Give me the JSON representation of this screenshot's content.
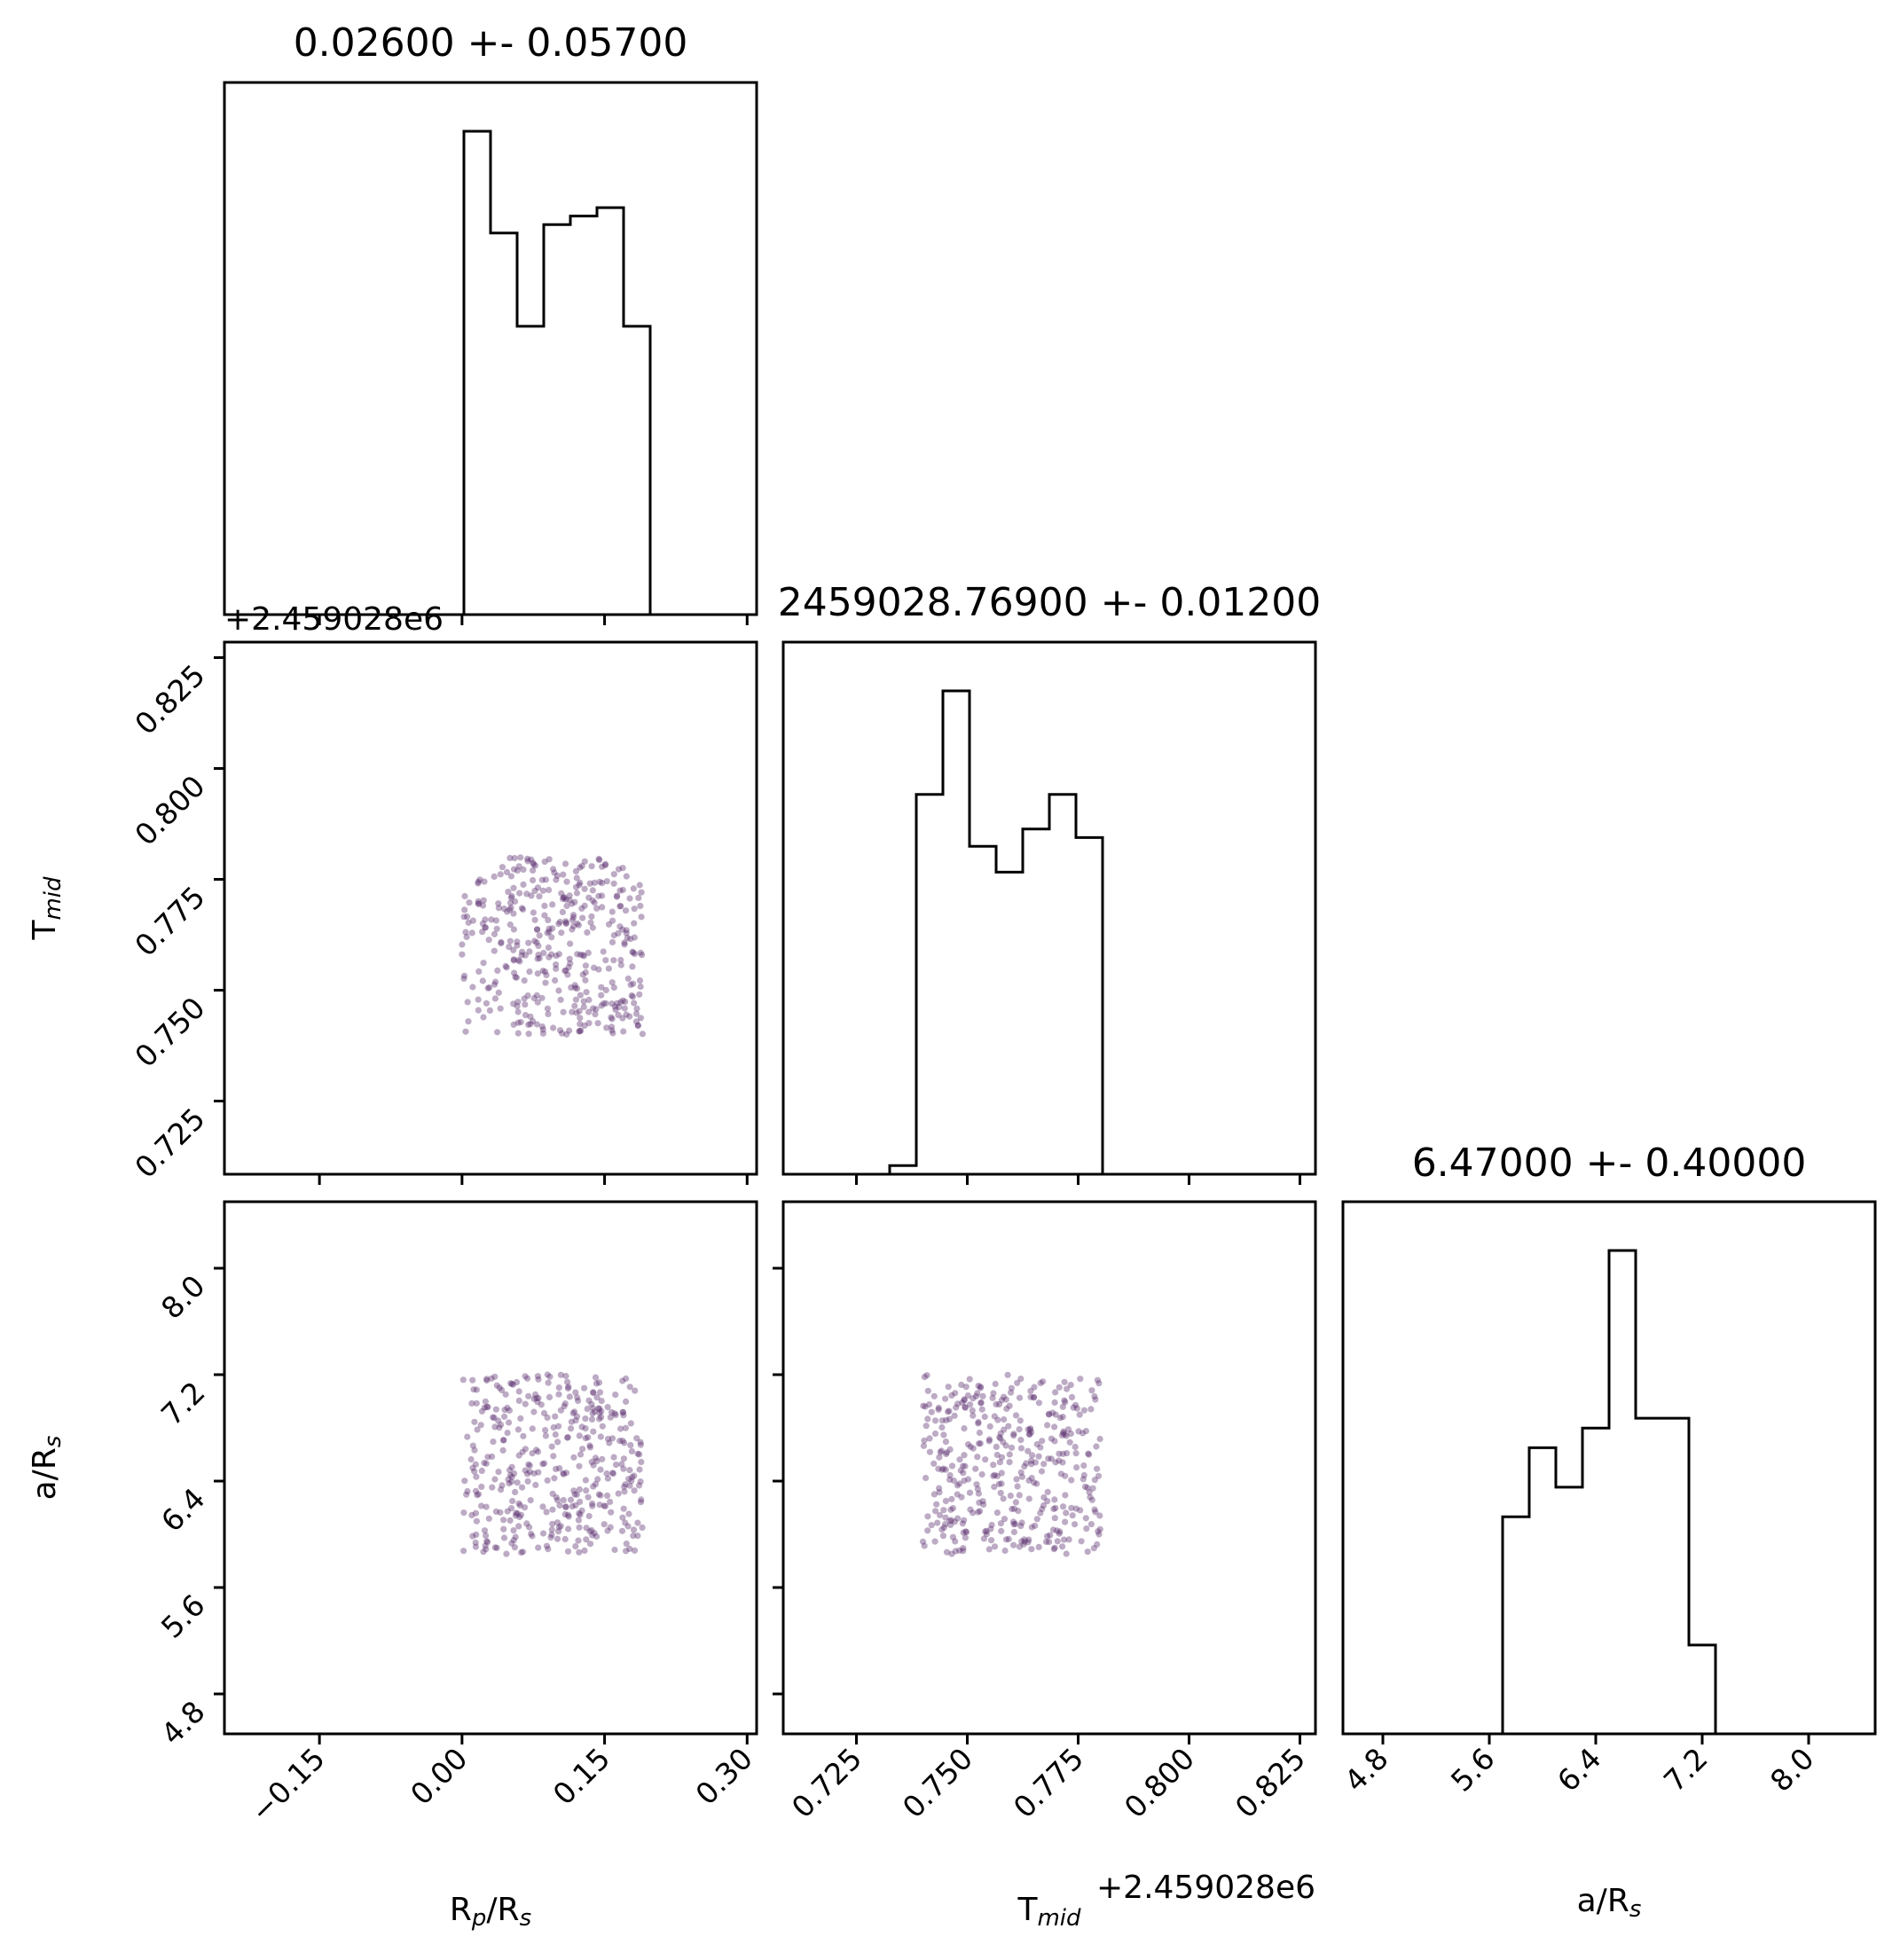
{
  "figure": {
    "type": "corner_plot",
    "point_color": "#5b2c6f",
    "line_color": "#000000",
    "parameters": [
      {
        "symbol": "R",
        "sub": "p",
        "rest": "/R",
        "sub2": "s"
      },
      {
        "symbol": "T",
        "sub": "mid",
        "rest": "",
        "sub2": ""
      },
      {
        "symbol": "a/R",
        "sub": "s",
        "rest": "",
        "sub2": ""
      }
    ],
    "offset_label": "+2.459028e6"
  },
  "chart_data": [
    {
      "type": "histogram",
      "panel": "R_p/R_s marginal",
      "title": "0.02600 +- 0.05700",
      "xlim": [
        -0.25,
        0.31
      ],
      "bin_edges": [
        -0.25,
        -0.222,
        -0.194,
        -0.166,
        -0.138,
        -0.11,
        -0.082,
        -0.054,
        -0.026,
        0.002,
        0.03,
        0.058,
        0.086,
        0.114,
        0.142,
        0.17,
        0.198,
        0.226,
        0.254,
        0.282,
        0.31
      ],
      "counts": [
        0,
        0,
        0,
        0,
        0,
        0,
        0,
        0,
        0,
        57,
        45,
        34,
        46,
        47,
        48,
        34,
        0,
        0,
        0,
        0
      ]
    },
    {
      "type": "histogram",
      "panel": "T_mid marginal",
      "title": "2459028.76900 +- 0.01200",
      "offset": 2459028,
      "xlim": [
        0.7085,
        0.8285
      ],
      "bin_edges": [
        0.7085,
        0.7145,
        0.7205,
        0.7265,
        0.7325,
        0.7385,
        0.7445,
        0.7505,
        0.7565,
        0.7625,
        0.7685,
        0.7745,
        0.7805,
        0.7865,
        0.7925,
        0.7985,
        0.8045,
        0.8105,
        0.8165,
        0.8225,
        0.8285
      ],
      "counts": [
        0,
        0,
        0,
        0,
        1,
        44,
        56,
        38,
        35,
        40,
        44,
        39,
        0,
        0,
        0,
        0,
        0,
        0,
        0,
        0
      ]
    },
    {
      "type": "histogram",
      "panel": "a/R_s marginal",
      "title": "6.47000 +- 0.40000",
      "xlim": [
        4.5,
        8.5
      ],
      "bin_edges": [
        4.5,
        4.7,
        4.9,
        5.1,
        5.3,
        5.5,
        5.7,
        5.9,
        6.1,
        6.3,
        6.5,
        6.7,
        6.9,
        7.1,
        7.3,
        7.5,
        7.7,
        7.9,
        8.1,
        8.3,
        8.5
      ],
      "counts": [
        0,
        0,
        0,
        0,
        0,
        0,
        22,
        29,
        25,
        31,
        49,
        32,
        32,
        9,
        0,
        0,
        0,
        0,
        0,
        0
      ]
    },
    {
      "type": "scatter",
      "panel": "T_mid vs R_p/R_s",
      "xlim": [
        -0.25,
        0.31
      ],
      "ylim": [
        0.7085,
        0.8285
      ],
      "x_range": [
        0.0,
        0.19
      ],
      "y_range": [
        0.74,
        0.78
      ],
      "n_points": 400
    },
    {
      "type": "scatter",
      "panel": "a/R_s vs R_p/R_s",
      "xlim": [
        -0.25,
        0.31
      ],
      "ylim": [
        4.5,
        8.5
      ],
      "x_range": [
        0.0,
        0.19
      ],
      "y_range": [
        5.85,
        7.2
      ],
      "n_points": 400
    },
    {
      "type": "scatter",
      "panel": "a/R_s vs T_mid",
      "xlim": [
        0.7085,
        0.8285
      ],
      "ylim": [
        4.5,
        8.5
      ],
      "x_range": [
        0.74,
        0.78
      ],
      "y_range": [
        5.85,
        7.2
      ],
      "n_points": 400
    }
  ],
  "ticks": {
    "rp": [
      "−0.15",
      "0.00",
      "0.15",
      "0.30"
    ],
    "tmid": [
      "0.725",
      "0.750",
      "0.775",
      "0.800",
      "0.825"
    ],
    "ars": [
      "4.8",
      "5.6",
      "6.4",
      "7.2",
      "8.0"
    ]
  }
}
